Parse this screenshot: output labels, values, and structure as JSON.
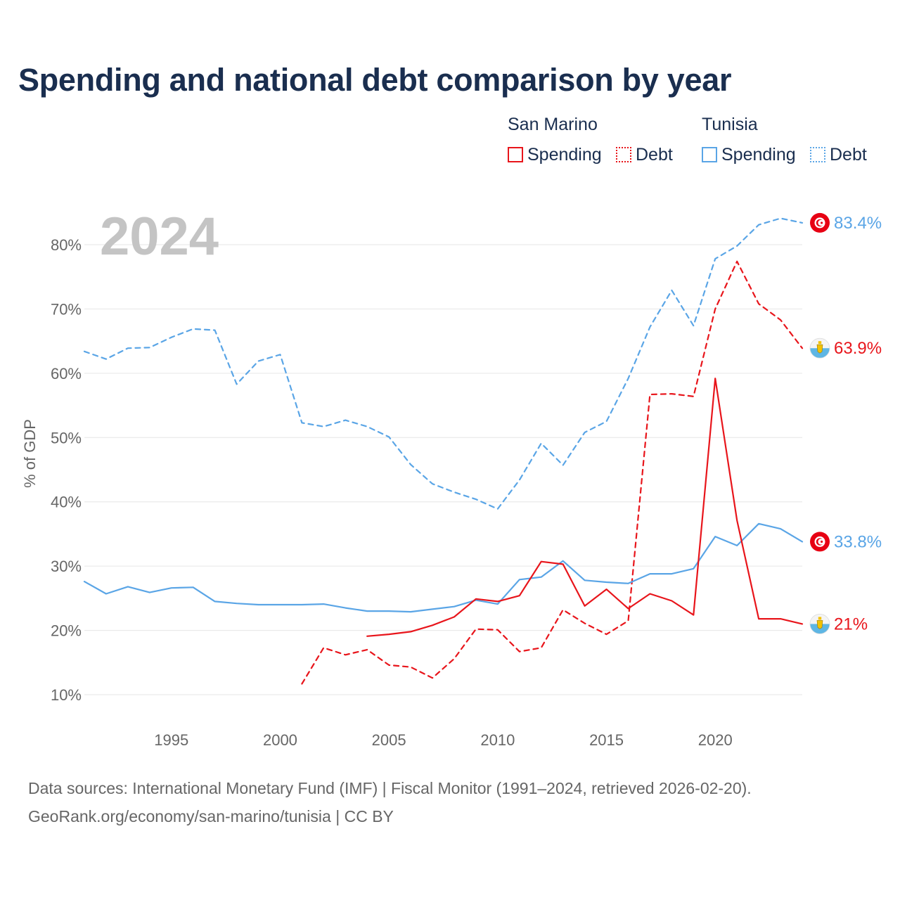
{
  "title": "Spending and national debt comparison by year",
  "legend": {
    "groups": [
      {
        "name": "San Marino",
        "color": "#e8151b",
        "items": [
          {
            "label": "Spending",
            "style": "solid"
          },
          {
            "label": "Debt",
            "style": "dotted"
          }
        ]
      },
      {
        "name": "Tunisia",
        "color": "#5aa5e6",
        "items": [
          {
            "label": "Spending",
            "style": "solid"
          },
          {
            "label": "Debt",
            "style": "dotted"
          }
        ]
      }
    ]
  },
  "year_watermark": "2024",
  "source": {
    "line1": "Data sources: International Monetary Fund (IMF) | Fiscal Monitor (1991–2024, retrieved 2026-02-20).",
    "line2": "GeoRank.org/economy/san-marino/tunisia | CC BY"
  },
  "chart_data": {
    "type": "line",
    "title": "Spending and national debt comparison by year",
    "xlabel": "",
    "ylabel": "% of GDP",
    "xlim": [
      1991,
      2024
    ],
    "ylim": [
      8.5,
      85
    ],
    "grid": true,
    "x_ticks": [
      1995,
      2000,
      2005,
      2010,
      2015,
      2020
    ],
    "y_ticks": [
      10,
      20,
      30,
      40,
      50,
      60,
      70,
      80
    ],
    "y_tick_labels": [
      "10%",
      "20%",
      "30%",
      "40%",
      "50%",
      "60%",
      "70%",
      "80%"
    ],
    "series": [
      {
        "name": "Tunisia Debt",
        "country": "Tunisia",
        "measure": "Debt",
        "color": "#5aa5e6",
        "dash": "dashed",
        "end_label": "83.4%",
        "flag": "tunisia",
        "points": [
          [
            1991,
            63.4
          ],
          [
            1992,
            62.2
          ],
          [
            1993,
            63.9
          ],
          [
            1994,
            64.0
          ],
          [
            1995,
            65.6
          ],
          [
            1996,
            66.9
          ],
          [
            1997,
            66.7
          ],
          [
            1998,
            58.3
          ],
          [
            1999,
            61.9
          ],
          [
            2000,
            62.9
          ],
          [
            2001,
            52.3
          ],
          [
            2002,
            51.7
          ],
          [
            2003,
            52.7
          ],
          [
            2004,
            51.7
          ],
          [
            2005,
            50.1
          ],
          [
            2006,
            45.8
          ],
          [
            2007,
            42.8
          ],
          [
            2008,
            41.5
          ],
          [
            2009,
            40.4
          ],
          [
            2010,
            38.9
          ],
          [
            2011,
            43.4
          ],
          [
            2012,
            49.1
          ],
          [
            2013,
            45.7
          ],
          [
            2014,
            50.8
          ],
          [
            2015,
            52.5
          ],
          [
            2016,
            59.2
          ],
          [
            2017,
            67.2
          ],
          [
            2018,
            72.9
          ],
          [
            2019,
            67.4
          ],
          [
            2020,
            77.8
          ],
          [
            2021,
            79.8
          ],
          [
            2022,
            83.1
          ],
          [
            2023,
            84.1
          ],
          [
            2024,
            83.4
          ]
        ]
      },
      {
        "name": "San Marino Debt",
        "country": "San Marino",
        "measure": "Debt",
        "color": "#e8151b",
        "dash": "dashed",
        "end_label": "63.9%",
        "flag": "san-marino",
        "points": [
          [
            2001,
            11.7
          ],
          [
            2002,
            17.3
          ],
          [
            2003,
            16.2
          ],
          [
            2004,
            17.0
          ],
          [
            2005,
            14.6
          ],
          [
            2006,
            14.3
          ],
          [
            2007,
            12.6
          ],
          [
            2008,
            15.6
          ],
          [
            2009,
            20.2
          ],
          [
            2010,
            20.1
          ],
          [
            2011,
            16.7
          ],
          [
            2012,
            17.3
          ],
          [
            2013,
            23.2
          ],
          [
            2014,
            21.1
          ],
          [
            2015,
            19.4
          ],
          [
            2016,
            21.5
          ],
          [
            2017,
            56.7
          ],
          [
            2018,
            56.8
          ],
          [
            2019,
            56.4
          ],
          [
            2020,
            70.0
          ],
          [
            2021,
            77.4
          ],
          [
            2022,
            70.8
          ],
          [
            2023,
            68.3
          ],
          [
            2024,
            63.9
          ]
        ]
      },
      {
        "name": "Tunisia Spending",
        "country": "Tunisia",
        "measure": "Spending",
        "color": "#5aa5e6",
        "dash": "solid",
        "end_label": "33.8%",
        "flag": "tunisia",
        "points": [
          [
            1991,
            27.6
          ],
          [
            1992,
            25.7
          ],
          [
            1993,
            26.8
          ],
          [
            1994,
            25.9
          ],
          [
            1995,
            26.6
          ],
          [
            1996,
            26.7
          ],
          [
            1997,
            24.5
          ],
          [
            1998,
            24.2
          ],
          [
            1999,
            24.0
          ],
          [
            2000,
            24.0
          ],
          [
            2001,
            24.0
          ],
          [
            2002,
            24.1
          ],
          [
            2003,
            23.5
          ],
          [
            2004,
            23.0
          ],
          [
            2005,
            23.0
          ],
          [
            2006,
            22.9
          ],
          [
            2007,
            23.3
          ],
          [
            2008,
            23.7
          ],
          [
            2009,
            24.7
          ],
          [
            2010,
            24.1
          ],
          [
            2011,
            27.9
          ],
          [
            2012,
            28.3
          ],
          [
            2013,
            30.8
          ],
          [
            2014,
            27.8
          ],
          [
            2015,
            27.5
          ],
          [
            2016,
            27.3
          ],
          [
            2017,
            28.8
          ],
          [
            2018,
            28.8
          ],
          [
            2019,
            29.6
          ],
          [
            2020,
            34.6
          ],
          [
            2021,
            33.2
          ],
          [
            2022,
            36.6
          ],
          [
            2023,
            35.8
          ],
          [
            2024,
            33.8
          ]
        ]
      },
      {
        "name": "San Marino Spending",
        "country": "San Marino",
        "measure": "Spending",
        "color": "#e8151b",
        "dash": "solid",
        "end_label": "21%",
        "flag": "san-marino",
        "points": [
          [
            2004,
            19.1
          ],
          [
            2005,
            19.4
          ],
          [
            2006,
            19.8
          ],
          [
            2007,
            20.8
          ],
          [
            2008,
            22.1
          ],
          [
            2009,
            24.9
          ],
          [
            2010,
            24.5
          ],
          [
            2011,
            25.4
          ],
          [
            2012,
            30.7
          ],
          [
            2013,
            30.3
          ],
          [
            2014,
            23.8
          ],
          [
            2015,
            26.4
          ],
          [
            2016,
            23.4
          ],
          [
            2017,
            25.7
          ],
          [
            2018,
            24.6
          ],
          [
            2019,
            22.4
          ],
          [
            2020,
            59.2
          ],
          [
            2021,
            37.1
          ],
          [
            2022,
            21.8
          ],
          [
            2023,
            21.8
          ],
          [
            2024,
            21.0
          ]
        ]
      }
    ]
  }
}
